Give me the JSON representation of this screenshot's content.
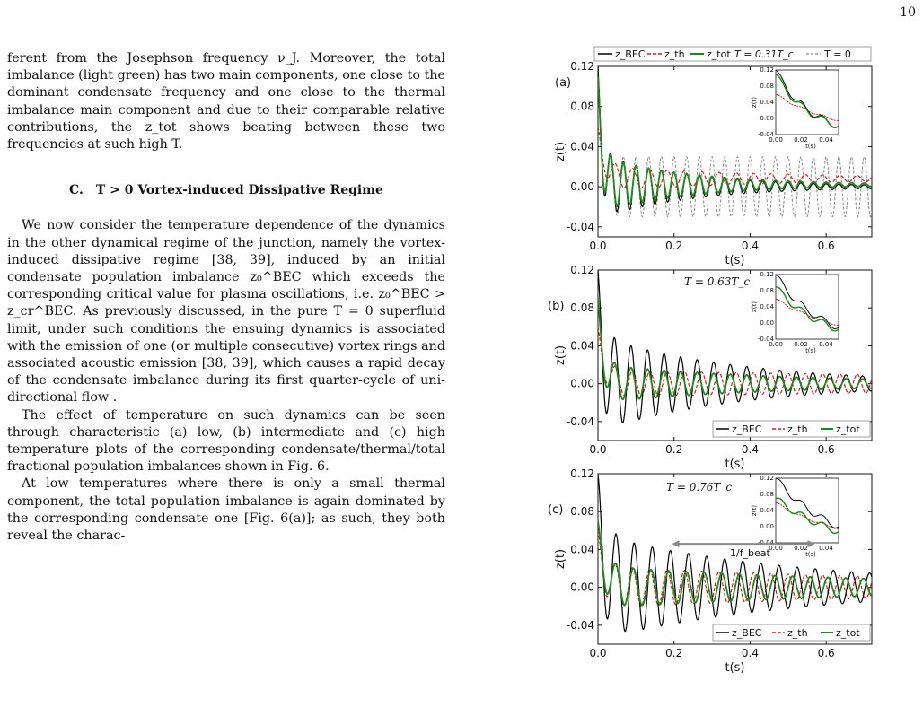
{
  "page": {
    "number": "10"
  },
  "left_column": {
    "para_top": "ferent from the Josephson frequency ν_J. Moreover, the total imbalance (light green) has two main components, one close to the dominant condensate frequency and one close to the thermal imbalance main component and due to their comparable relative contributions, the z_tot shows beating between these two frequencies at such high T.",
    "section_label": "C.",
    "section_title": "T > 0 Vortex-induced Dissipative Regime",
    "para_1": "We now consider the temperature dependence of the dynamics in the other dynamical regime of the junction, namely the vortex-induced dissipative regime [38, 39], induced by an initial condensate population imbalance z₀^BEC which exceeds the corresponding critical value for plasma oscillations, i.e. z₀^BEC > z_cr^BEC. As previously discussed, in the pure T = 0 superfluid limit, under such conditions the ensuing dynamics is associated with the emission of one (or multiple consecutive) vortex rings and associated acoustic emission [38, 39], which causes a rapid decay of the condensate imbalance during its first quarter-cycle of uni-directional flow .",
    "para_2": "The effect of temperature on such dynamics can be seen through characteristic (a) low, (b) intermediate and (c) high temperature plots of the corresponding condensate/thermal/total fractional population imbalances shown in Fig. 6.",
    "para_3": "At low temperatures where there is only a small thermal component, the total population imbalance is again dominated by the corresponding condensate one [Fig. 6(a)]; as such, they both reveal the charac-"
  },
  "figure": {
    "legend_top": {
      "bec": "z_BEC",
      "th": "z_th",
      "tot": "z_tot",
      "temp": "T = 0.31T_c",
      "zero": "T = 0"
    },
    "legend_bottom": {
      "bec": "z_BEC",
      "th": "z_th",
      "tot": "z_tot"
    },
    "ylabel": "z(t)",
    "xlabel": "t(s)",
    "beat_label": "1/f_beat",
    "colors": {
      "bec": "#000000",
      "th": "#e8141c",
      "tot": "#1a8a1a",
      "zero": "#888888"
    }
  },
  "chart_data": [
    {
      "type": "line",
      "panel": "(a)",
      "annotation": "",
      "xlim": [
        0.0,
        0.72
      ],
      "ylim": [
        -0.05,
        0.12
      ],
      "xticks": [
        "0.0",
        "0.2",
        "0.4",
        "0.6"
      ],
      "yticks": [
        "0.12",
        "0.08",
        "0.04",
        "0.00",
        "-0.04"
      ],
      "series": [
        {
          "name": "z_BEC",
          "model": {
            "offset": 0.0,
            "amp": 0.032,
            "decay": 4.0,
            "freq": 30,
            "init": 0.12,
            "tau": 0.012
          }
        },
        {
          "name": "z_th",
          "model": {
            "offset": 0.008,
            "amp": 0.012,
            "decay": 2.0,
            "freq": 22,
            "init": 0.06,
            "tau": 0.02
          }
        },
        {
          "name": "z_tot",
          "model": {
            "offset": 0.002,
            "amp": 0.028,
            "decay": 4.0,
            "freq": 30,
            "init": 0.11,
            "tau": 0.012
          }
        },
        {
          "name": "T = 0",
          "model": {
            "offset": 0.0,
            "amp": 0.03,
            "decay": 0.0,
            "freq": 30,
            "init": 0.12,
            "tau": 0.012
          }
        }
      ],
      "inset": {
        "xticks": [
          "0.00",
          "0.02",
          "0.04"
        ],
        "yticks": [
          "0.12",
          "0.08",
          "0.04",
          "0.00",
          "-0.04"
        ],
        "xlabel": "t(s)",
        "ylabel": "z(t)"
      }
    },
    {
      "type": "line",
      "panel": "(b)",
      "annotation": "T = 0.63T_c",
      "xlim": [
        0.0,
        0.72
      ],
      "ylim": [
        -0.06,
        0.12
      ],
      "xticks": [
        "0.0",
        "0.2",
        "0.4",
        "0.6"
      ],
      "yticks": [
        "0.12",
        "0.08",
        "0.04",
        "0.00",
        "-0.04"
      ],
      "series": [
        {
          "name": "z_BEC",
          "model": {
            "offset": 0.0,
            "amp": 0.05,
            "decay": 2.6,
            "freq": 23,
            "init": 0.12,
            "tau": 0.015
          }
        },
        {
          "name": "z_th",
          "model": {
            "offset": 0.0,
            "amp": 0.014,
            "decay": 0.5,
            "freq": 22,
            "init": 0.06,
            "tau": 0.02
          }
        },
        {
          "name": "z_tot",
          "model": {
            "offset": 0.0,
            "amp": 0.02,
            "decay": 2.0,
            "freq": 23,
            "init": 0.09,
            "tau": 0.015
          }
        }
      ],
      "inset": {
        "xticks": [
          "0.00",
          "0.02",
          "0.04"
        ],
        "yticks": [
          "0.12",
          "0.08",
          "0.04",
          "0.00",
          "-0.04"
        ],
        "xlabel": "t(s)",
        "ylabel": "z(t)"
      }
    },
    {
      "type": "line",
      "panel": "(c)",
      "annotation": "T = 0.76T_c",
      "xlim": [
        0.0,
        0.72
      ],
      "ylim": [
        -0.06,
        0.12
      ],
      "xticks": [
        "0.0",
        "0.2",
        "0.4",
        "0.6"
      ],
      "yticks": [
        "0.12",
        "0.08",
        "0.04",
        "0.00",
        "-0.04"
      ],
      "series": [
        {
          "name": "z_BEC",
          "model": {
            "offset": 0.0,
            "amp": 0.055,
            "decay": 1.8,
            "freq": 21,
            "init": 0.12,
            "tau": 0.02
          }
        },
        {
          "name": "z_th",
          "model": {
            "offset": 0.0,
            "amp": 0.022,
            "decay": 0.9,
            "freq": 22,
            "init": 0.06,
            "tau": 0.02
          }
        },
        {
          "name": "z_tot",
          "model": {
            "offset": 0.0,
            "amp": 0.022,
            "decay": 1.2,
            "freq": 21.5,
            "init": 0.07,
            "tau": 0.02
          }
        }
      ],
      "inset": {
        "xticks": [
          "0.00",
          "0.02",
          "0.04"
        ],
        "yticks": [
          "0.12",
          "0.08",
          "0.04",
          "0.00",
          "-0.04"
        ],
        "xlabel": "t(s)",
        "ylabel": "z(t)"
      }
    }
  ]
}
